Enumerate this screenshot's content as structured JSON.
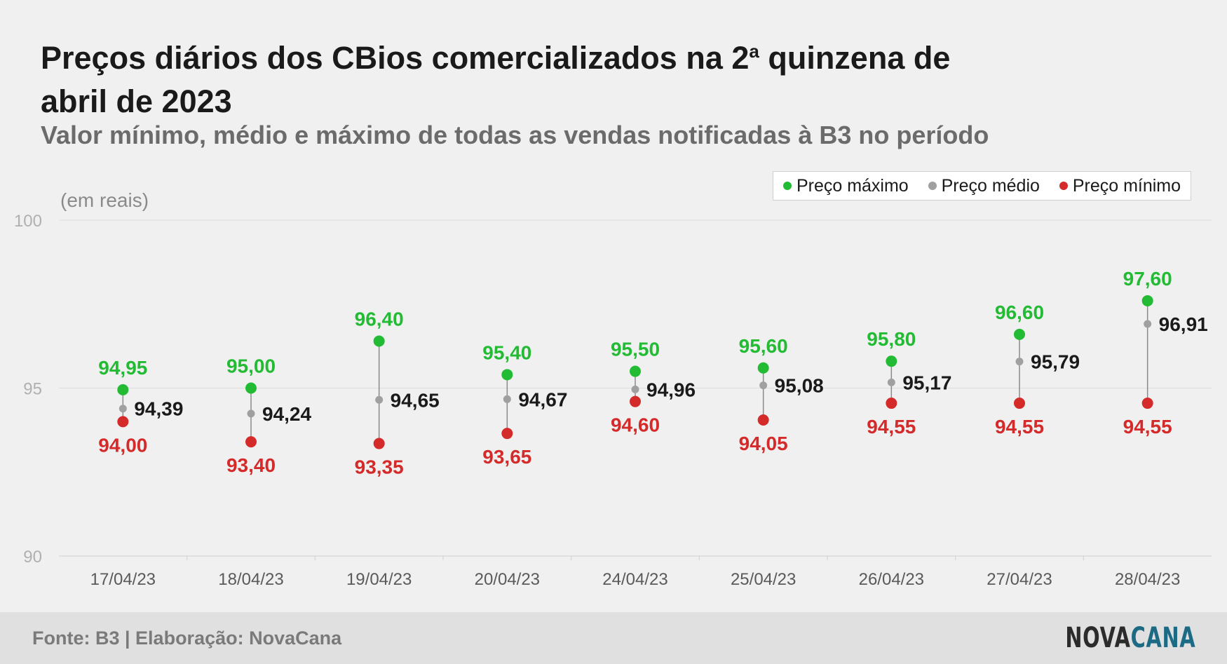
{
  "title_main": "Preços diários dos CBios comercializados na 2",
  "title_sup": "a",
  "title_end": " quinzena de abril de 2023",
  "subtitle": "Valor mínimo, médio e máximo de todas as vendas notificadas à B3 no período",
  "unit_label": "(em reais)",
  "legend": {
    "max_label": "Preço máximo",
    "avg_label": "Preço médio",
    "min_label": "Preço mínimo"
  },
  "colors": {
    "max": "#22bb33",
    "avg": "#a0a0a0",
    "min": "#d42a2a",
    "avg_text": "#1a1a1a"
  },
  "footer": {
    "source": "Fonte: B3 | Elaboração: NovaCana",
    "logo_part1": "NOVA",
    "logo_part2": "CANA"
  },
  "chart_data": {
    "type": "scatter",
    "categories": [
      "17/04/23",
      "18/04/23",
      "19/04/23",
      "20/04/23",
      "24/04/23",
      "25/04/23",
      "26/04/23",
      "27/04/23",
      "28/04/23"
    ],
    "series": [
      {
        "name": "Preço máximo",
        "values": [
          94.95,
          95.0,
          96.4,
          95.4,
          95.5,
          95.6,
          95.8,
          96.6,
          97.6
        ]
      },
      {
        "name": "Preço médio",
        "values": [
          94.39,
          94.24,
          94.65,
          94.67,
          94.96,
          95.08,
          95.17,
          95.79,
          96.91
        ]
      },
      {
        "name": "Preço mínimo",
        "values": [
          94.0,
          93.4,
          93.35,
          93.65,
          94.6,
          94.05,
          94.55,
          94.55,
          94.55
        ]
      }
    ],
    "ylim": [
      90,
      100
    ],
    "yticks": [
      90,
      95,
      100
    ],
    "grid": true,
    "legend_position": "top-right"
  }
}
